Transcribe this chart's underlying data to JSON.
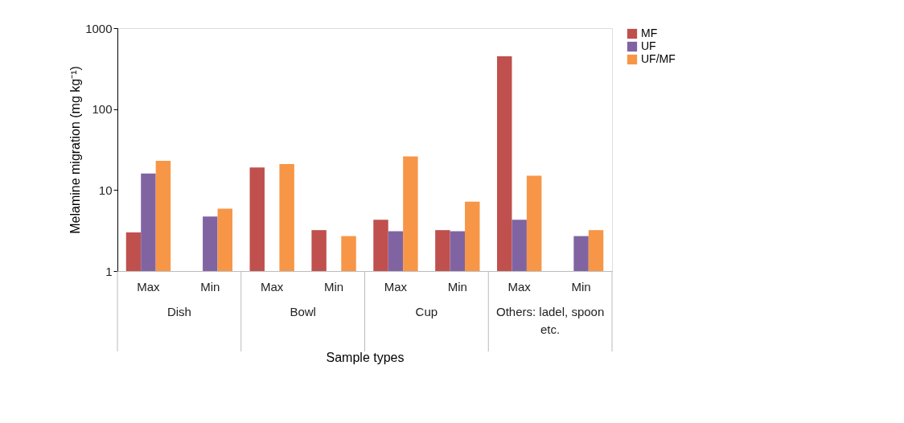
{
  "chart_data": {
    "type": "bar",
    "xlabel": "Sample types",
    "ylabel": "Melamine migration (mg kg⁻¹)",
    "categories": [
      "Max",
      "Min",
      "Max",
      "Min",
      "Max",
      "Min",
      "Max",
      "Min"
    ],
    "series": [
      {
        "name": "MF",
        "color": "#c0504d",
        "values": [
          3.0,
          null,
          19,
          3.2,
          4.3,
          3.2,
          450,
          null
        ]
      },
      {
        "name": "UF",
        "color": "#8064a2",
        "values": [
          16,
          4.7,
          null,
          null,
          3.1,
          3.1,
          4.3,
          2.7
        ]
      },
      {
        "name": "UF/MF",
        "color": "#f79646",
        "values": [
          23,
          5.9,
          21,
          2.7,
          26,
          7.2,
          15,
          3.2
        ]
      }
    ],
    "annotations": [
      "Dish",
      "Bowl",
      "Cup",
      "Others: ladel, spoon etc."
    ],
    "log": "y",
    "ylim": [
      1,
      1000
    ],
    "yticks": [
      1,
      10,
      100,
      1000
    ],
    "grid": false,
    "legend": "right"
  }
}
